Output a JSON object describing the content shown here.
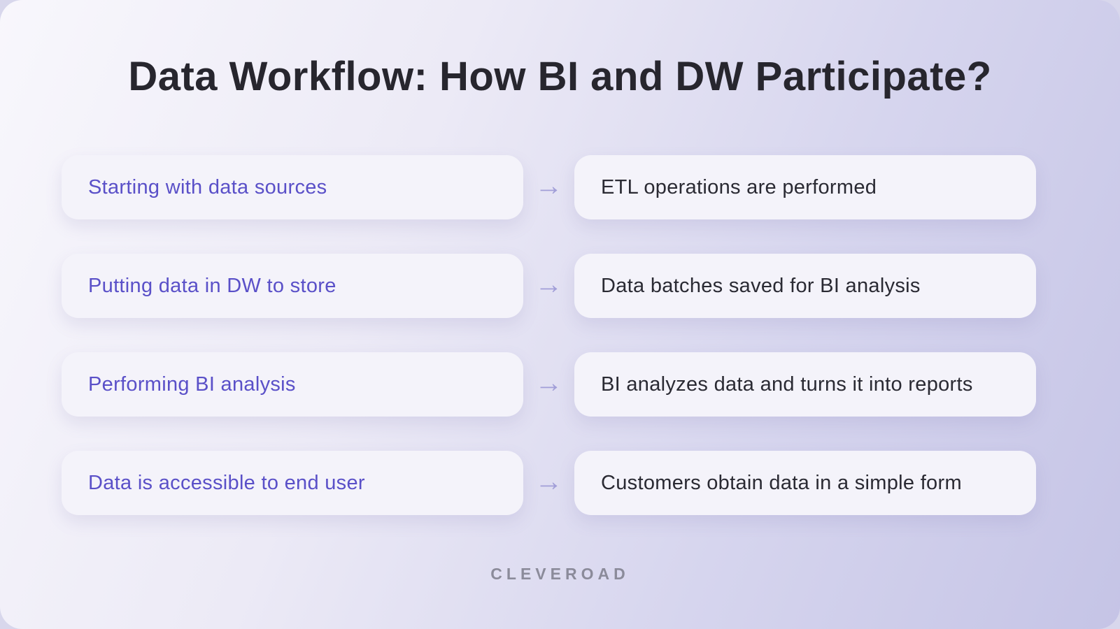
{
  "title": "Data Workflow: How BI and DW Participate?",
  "brand": "CLEVEROAD",
  "arrow_glyph": "→",
  "colors": {
    "accent_text": "#5a50c8",
    "dark_text": "#2a2a33",
    "card_background": "#f4f3fa",
    "arrow": "#a29fd8",
    "brand_gray": "#8b8b9a",
    "background_gradient_start": "#f8f7fc",
    "background_gradient_end": "#c5c4e6"
  },
  "rows": [
    {
      "left": "Starting with data sources",
      "right": "ETL operations are performed"
    },
    {
      "left": "Putting data in DW to store",
      "right": "Data batches saved for BI analysis"
    },
    {
      "left": "Performing BI analysis",
      "right": "BI analyzes data and turns it into reports"
    },
    {
      "left": "Data is accessible to end user",
      "right": "Customers obtain data in a simple form"
    }
  ]
}
